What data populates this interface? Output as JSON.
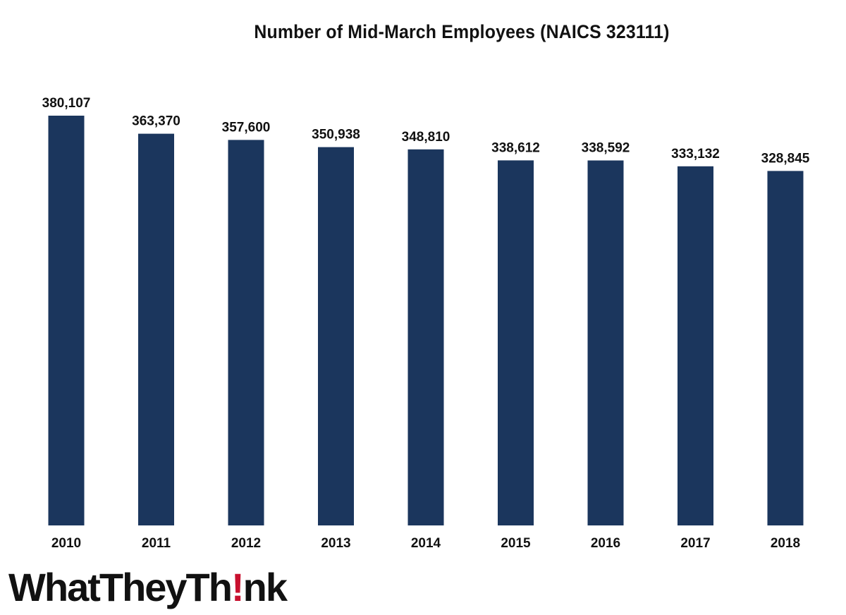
{
  "chart_data": {
    "type": "bar",
    "title": "Number of Mid-March Employees (NAICS 323111)",
    "xlabel": "",
    "ylabel": "",
    "categories": [
      "2010",
      "2011",
      "2012",
      "2013",
      "2014",
      "2015",
      "2016",
      "2017",
      "2018"
    ],
    "values": [
      380107,
      363370,
      357600,
      350938,
      348810,
      338612,
      338592,
      333132,
      328845
    ],
    "value_labels": [
      "380,107",
      "363,370",
      "357,600",
      "350,938",
      "348,810",
      "338,612",
      "338,592",
      "333,132",
      "328,845"
    ],
    "bar_color": "#1b365d",
    "grid": false,
    "legend": "none"
  },
  "logo": {
    "text_before": "WhatTheyTh",
    "text_mark": "!",
    "text_after": "nk",
    "mark_color": "#c8102e"
  }
}
